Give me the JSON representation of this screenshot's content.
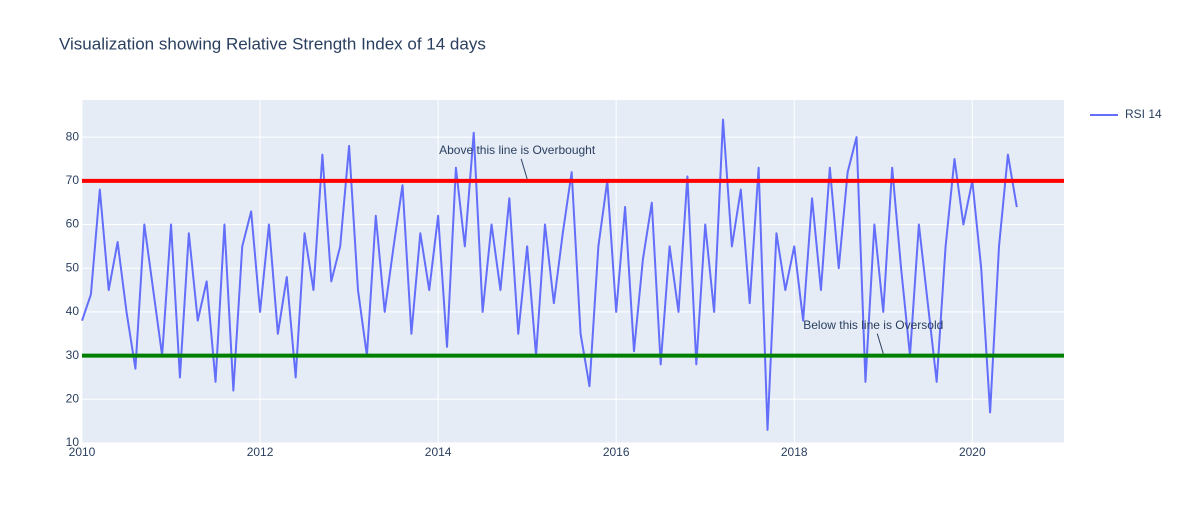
{
  "chart_data": {
    "type": "line",
    "title": "Visualization showing Relative Strength Index of 14 days",
    "x": [
      2010.0,
      2010.1,
      2010.2,
      2010.3,
      2010.4,
      2010.5,
      2010.6,
      2010.7,
      2010.8,
      2010.9,
      2011.0,
      2011.1,
      2011.2,
      2011.3,
      2011.4,
      2011.5,
      2011.6,
      2011.7,
      2011.8,
      2011.9,
      2012.0,
      2012.1,
      2012.2,
      2012.3,
      2012.4,
      2012.5,
      2012.6,
      2012.7,
      2012.8,
      2012.9,
      2013.0,
      2013.1,
      2013.2,
      2013.3,
      2013.4,
      2013.5,
      2013.6,
      2013.7,
      2013.8,
      2013.9,
      2014.0,
      2014.1,
      2014.2,
      2014.3,
      2014.4,
      2014.5,
      2014.6,
      2014.7,
      2014.8,
      2014.9,
      2015.0,
      2015.1,
      2015.2,
      2015.3,
      2015.4,
      2015.5,
      2015.6,
      2015.7,
      2015.8,
      2015.9,
      2016.0,
      2016.1,
      2016.2,
      2016.3,
      2016.4,
      2016.5,
      2016.6,
      2016.7,
      2016.8,
      2016.9,
      2017.0,
      2017.1,
      2017.2,
      2017.3,
      2017.4,
      2017.5,
      2017.6,
      2017.7,
      2017.8,
      2017.9,
      2018.0,
      2018.1,
      2018.2,
      2018.3,
      2018.4,
      2018.5,
      2018.6,
      2018.7,
      2018.8,
      2018.9,
      2019.0,
      2019.1,
      2019.2,
      2019.3,
      2019.4,
      2019.5,
      2019.6,
      2019.7,
      2019.8,
      2019.9,
      2020.0,
      2020.1,
      2020.2,
      2020.3,
      2020.4,
      2020.5
    ],
    "series": [
      {
        "name": "RSI 14",
        "color": "#636efa",
        "values": [
          38,
          44,
          68,
          45,
          56,
          40,
          27,
          60,
          45,
          30,
          60,
          25,
          58,
          38,
          47,
          24,
          60,
          22,
          55,
          63,
          40,
          60,
          35,
          48,
          25,
          58,
          45,
          76,
          47,
          55,
          78,
          45,
          30,
          62,
          40,
          55,
          69,
          35,
          58,
          45,
          62,
          32,
          73,
          55,
          81,
          40,
          60,
          45,
          66,
          35,
          55,
          30,
          60,
          42,
          58,
          72,
          35,
          23,
          55,
          70,
          40,
          64,
          31,
          52,
          65,
          28,
          55,
          40,
          71,
          28,
          60,
          40,
          84,
          55,
          68,
          42,
          73,
          13,
          58,
          45,
          55,
          38,
          66,
          45,
          73,
          50,
          72,
          80,
          24,
          60,
          40,
          73,
          50,
          30,
          60,
          42,
          24,
          55,
          75,
          60,
          70,
          50,
          17,
          55,
          76,
          64
        ]
      }
    ],
    "hlines": [
      {
        "y": 70,
        "color": "#ff0000"
      },
      {
        "y": 30,
        "color": "#008000"
      }
    ],
    "annotations": [
      {
        "text": "Above this line is Overbought",
        "x": 2015.0,
        "y": 70
      },
      {
        "text": "Below this line is Oversold",
        "x": 2019.0,
        "y": 30
      }
    ],
    "xlim": [
      2010,
      2021.03
    ],
    "ylim": [
      10,
      88.5
    ],
    "xticks": [
      2010,
      2012,
      2014,
      2016,
      2018,
      2020
    ],
    "yticks": [
      10,
      20,
      30,
      40,
      50,
      60,
      70,
      80
    ],
    "grid": true,
    "legend": "top-right"
  }
}
